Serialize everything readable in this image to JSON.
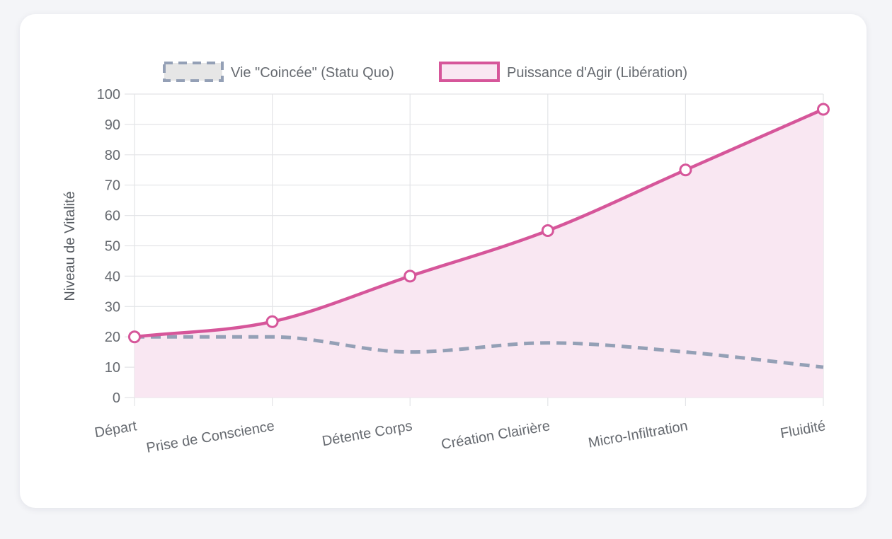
{
  "chart_data": {
    "type": "line",
    "categories": [
      "Départ",
      "Prise de Conscience",
      "Détente Corps",
      "Création Clairière",
      "Micro-Infiltration",
      "Fluidité"
    ],
    "series": [
      {
        "name": "Vie \"Coincée\" (Statu Quo)",
        "values": [
          20,
          20,
          15,
          18,
          15,
          10
        ],
        "color": "#94a0b6",
        "fill": "#e6e6e6",
        "style": "dashed",
        "filled": false,
        "points": false
      },
      {
        "name": "Puissance d'Agir (Libération)",
        "values": [
          20,
          25,
          40,
          55,
          75,
          95
        ],
        "color": "#d6569a",
        "fill": "#f9e7f2",
        "style": "solid",
        "filled": true,
        "points": true
      }
    ],
    "ylabel": "Niveau de Vitalité",
    "ylim": [
      0,
      100
    ],
    "yticks": [
      0,
      10,
      20,
      30,
      40,
      50,
      60,
      70,
      80,
      90,
      100
    ],
    "grid": true,
    "legend": "top-center"
  }
}
